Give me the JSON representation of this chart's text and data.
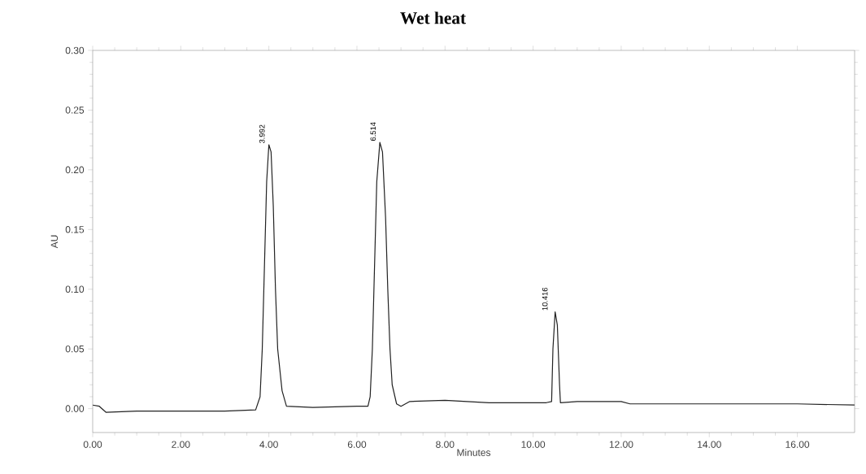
{
  "chart_data": {
    "type": "line",
    "title": "Wet heat",
    "xlabel": "Minutes",
    "ylabel": "AU",
    "x": [
      0,
      0.15,
      0.3,
      1,
      2,
      3,
      3.7,
      3.8,
      3.85,
      3.9,
      3.95,
      4.0,
      4.05,
      4.1,
      4.15,
      4.2,
      4.3,
      4.4,
      5,
      6,
      6.25,
      6.3,
      6.35,
      6.4,
      6.45,
      6.52,
      6.58,
      6.65,
      6.7,
      6.75,
      6.8,
      6.9,
      7.0,
      7.2,
      8.0,
      9,
      10.3,
      10.42,
      10.45,
      10.5,
      10.55,
      10.6,
      10.62,
      11,
      12,
      12.2,
      14,
      16,
      17.3
    ],
    "values": [
      0.003,
      0.002,
      -0.003,
      -0.002,
      -0.002,
      -0.002,
      -0.001,
      0.01,
      0.05,
      0.12,
      0.19,
      0.221,
      0.215,
      0.17,
      0.1,
      0.05,
      0.015,
      0.002,
      0.001,
      0.002,
      0.002,
      0.01,
      0.05,
      0.12,
      0.19,
      0.223,
      0.215,
      0.16,
      0.1,
      0.05,
      0.02,
      0.004,
      0.002,
      0.006,
      0.007,
      0.005,
      0.005,
      0.006,
      0.05,
      0.081,
      0.07,
      0.02,
      0.005,
      0.006,
      0.006,
      0.004,
      0.004,
      0.004,
      0.003
    ],
    "color": "#222222",
    "marker": "none",
    "line_style": "solid",
    "grid": false,
    "xlim": [
      0,
      17.3
    ],
    "ylim": [
      -0.02,
      0.3
    ],
    "xticks": [
      {
        "value": 0,
        "label": "0.00"
      },
      {
        "value": 2,
        "label": "2.00"
      },
      {
        "value": 4,
        "label": "4.00"
      },
      {
        "value": 6,
        "label": "6.00"
      },
      {
        "value": 8,
        "label": "8.00"
      },
      {
        "value": 10,
        "label": "10.00"
      },
      {
        "value": 12,
        "label": "12.00"
      },
      {
        "value": 14,
        "label": "14.00"
      },
      {
        "value": 16,
        "label": "16.00"
      }
    ],
    "yticks": [
      {
        "value": 0,
        "label": "0.00"
      },
      {
        "value": 0.05,
        "label": "0.05"
      },
      {
        "value": 0.1,
        "label": "0.10"
      },
      {
        "value": 0.15,
        "label": "0.15"
      },
      {
        "value": 0.2,
        "label": "0.20"
      },
      {
        "value": 0.25,
        "label": "0.25"
      },
      {
        "value": 0.3,
        "label": "0.30"
      }
    ],
    "annotations": [
      {
        "text": "3.992",
        "x": 3.992,
        "y": 0.221
      },
      {
        "text": "6.514",
        "x": 6.514,
        "y": 0.223
      },
      {
        "text": "10.416",
        "x": 10.416,
        "y": 0.081
      }
    ]
  }
}
